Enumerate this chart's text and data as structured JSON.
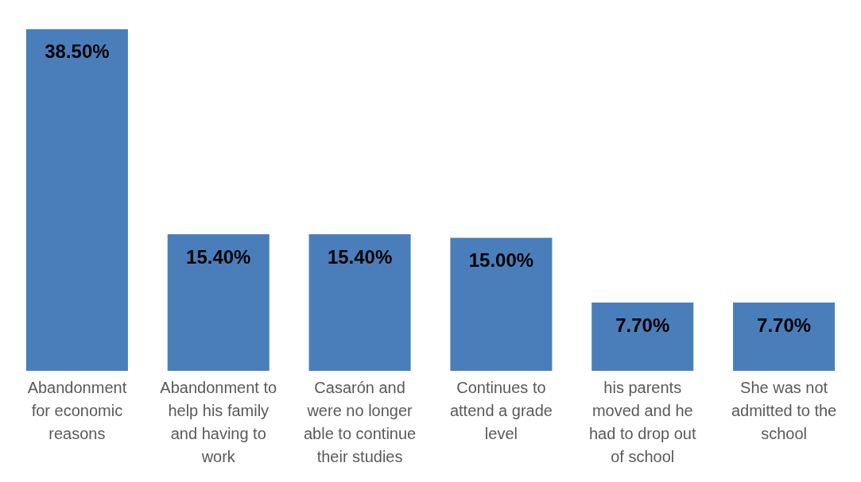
{
  "chart_data": {
    "type": "bar",
    "categories": [
      "Abandonment for economic reasons",
      "Abandonment to help his family and having to work",
      "Casarón and were no longer able to continue their studies",
      "Continues to attend a grade level",
      "his parents moved and he had to drop out of school",
      "She was not admitted to the school"
    ],
    "values": [
      38.5,
      15.4,
      15.4,
      15.0,
      7.7,
      7.7
    ],
    "value_labels": [
      "38.50%",
      "15.40%",
      "15.40%",
      "15.00%",
      "7.70%",
      "7.70%"
    ],
    "color": "#4a7ebb",
    "grid": false,
    "legend": false
  }
}
